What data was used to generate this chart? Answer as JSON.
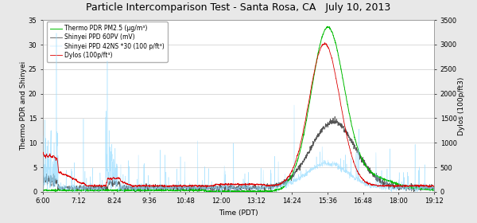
{
  "title": "Particle Intercomparison Test - Santa Rosa, CA   July 10, 2013",
  "xlabel": "Time (PDT)",
  "ylabel_left": "Thermo PDR and Shinyei",
  "ylabel_right": "Dylos (100p/ft3)",
  "ylim_left": [
    0,
    35
  ],
  "ylim_right": [
    0,
    3500
  ],
  "yticks_left": [
    0,
    5,
    10,
    15,
    20,
    25,
    30,
    35
  ],
  "yticks_right": [
    0,
    500,
    1000,
    1500,
    2000,
    2500,
    3000,
    3500
  ],
  "xtick_labels": [
    "6:00",
    "7:12",
    "8:24",
    "9:36",
    "10:48",
    "12:00",
    "13:12",
    "14:24",
    "15:36",
    "16:48",
    "18:00",
    "19:12"
  ],
  "xtick_hours": [
    6.0,
    7.2,
    8.4,
    9.6,
    10.8,
    12.0,
    13.2,
    14.4,
    15.6,
    16.8,
    18.0,
    19.2
  ],
  "xlim": [
    6.0,
    19.2
  ],
  "legend_labels": [
    "Thermo PDR PM2.5 (μg/m³)",
    "Shinyei PPD 60PV (mV)",
    "Shinyei PPD 42NS *30 (100 p/ft³)",
    "Dylos (100p/ft³)"
  ],
  "line_colors": [
    "#00bb00",
    "#555555",
    "#99ddff",
    "#dd0000"
  ],
  "bg_color": "#e8e8e8",
  "plot_bg": "#ffffff",
  "grid_color": "#cccccc",
  "title_fontsize": 9,
  "label_fontsize": 6.5,
  "tick_fontsize": 6,
  "legend_fontsize": 5.5
}
